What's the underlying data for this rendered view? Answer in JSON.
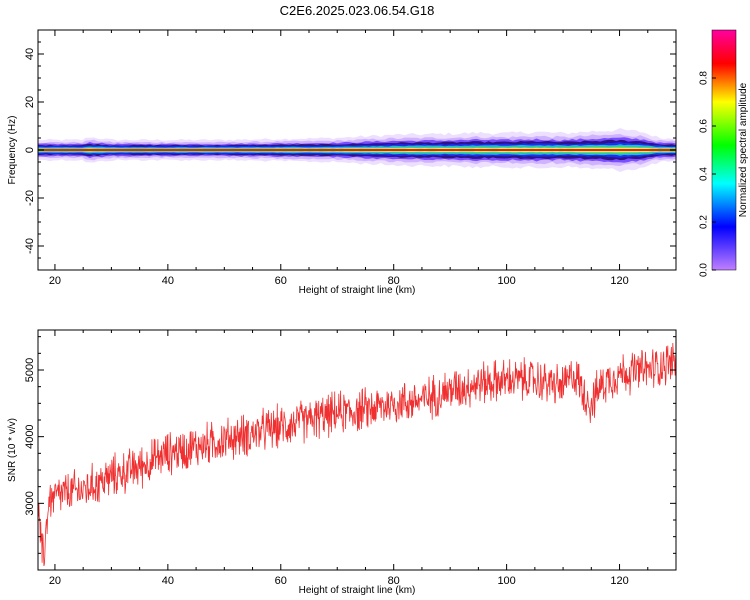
{
  "figure": {
    "title": "C2E6.2025.023.06.54.G18",
    "colors": {
      "signal_core": "#e0202a",
      "signal_band": "#2a1080",
      "snr_line": "#f03030",
      "axes": "#000000"
    }
  },
  "chart_data": [
    {
      "type": "heatmap",
      "title": "C2E6.2025.023.06.54.G18",
      "xlabel": "Height of straight line (km)",
      "ylabel": "Frequency (Hz)",
      "xlim": [
        17,
        130
      ],
      "ylim": [
        -50,
        50
      ],
      "x_ticks": [
        20,
        40,
        60,
        80,
        100,
        120
      ],
      "y_ticks": [
        -40,
        -20,
        0,
        20,
        40
      ],
      "colorbar": {
        "label": "Normalized spectral amplitude",
        "range": [
          0.0,
          1.0
        ],
        "ticks": [
          "0.0",
          "0.2",
          "0.4",
          "0.6",
          "0.8"
        ],
        "colormap": [
          "#c080ff",
          "#0000ff",
          "#00ffff",
          "#00ff00",
          "#ffff00",
          "#ff0000",
          "#ff00a0"
        ]
      },
      "ridge": {
        "frequency_hz": 0,
        "width_profile": {
          "x": [
            17,
            25,
            26,
            30,
            50,
            70,
            80,
            90,
            95,
            100,
            105,
            110,
            115,
            120,
            124,
            127,
            130
          ],
          "half_width_hz": [
            2.0,
            2.0,
            2.6,
            2.0,
            2.0,
            2.4,
            3.0,
            3.2,
            3.4,
            3.3,
            3.6,
            3.3,
            3.7,
            4.0,
            3.6,
            2.4,
            2.2
          ]
        }
      }
    },
    {
      "type": "line",
      "xlabel": "Height of straight line (km)",
      "ylabel": "SNR (10 * v/v)",
      "xlim": [
        17,
        130
      ],
      "ylim": [
        2000,
        5600
      ],
      "x_ticks": [
        20,
        40,
        60,
        80,
        100,
        120
      ],
      "y_ticks": [
        3000,
        4000,
        5000
      ],
      "series": [
        {
          "x": [
            17,
            17.5,
            18,
            18.5,
            19,
            20,
            22,
            25,
            30,
            35,
            40,
            45,
            50,
            55,
            60,
            65,
            70,
            75,
            80,
            85,
            90,
            95,
            100,
            105,
            110,
            112,
            114,
            115,
            117,
            120,
            125,
            130
          ],
          "y": [
            3000,
            2400,
            2150,
            2700,
            3050,
            3100,
            3150,
            3200,
            3400,
            3550,
            3750,
            3850,
            3950,
            4050,
            4150,
            4250,
            4350,
            4400,
            4500,
            4550,
            4700,
            4800,
            4850,
            4850,
            4750,
            4950,
            4600,
            4500,
            4800,
            4950,
            5000,
            5150
          ],
          "noise_amplitude": 260
        }
      ]
    }
  ]
}
